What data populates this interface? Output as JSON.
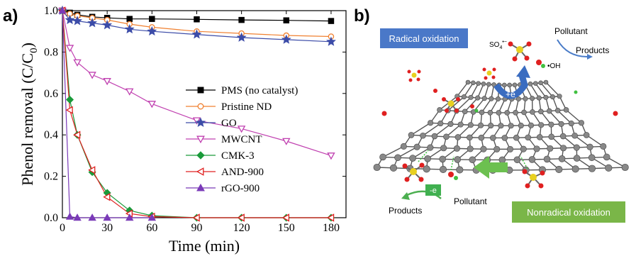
{
  "panel_a_label": "a)",
  "panel_b_label": "b)",
  "chart_data": {
    "type": "line",
    "xlabel": "Time (min)",
    "ylabel_main": "Phenol removal (C/C",
    "ylabel_sub": "0",
    "ylabel_close": ")",
    "xlim": [
      0,
      190
    ],
    "ylim": [
      0,
      1.0
    ],
    "x_ticks": [
      0,
      30,
      60,
      90,
      120,
      150,
      180
    ],
    "y_ticks": [
      "0.0",
      "0.2",
      "0.4",
      "0.6",
      "0.8",
      "1.0"
    ],
    "legend_position": "center-right",
    "series": [
      {
        "name": "PMS (no catalyst)",
        "color": "#000000",
        "marker": "square",
        "filled": true,
        "x": [
          0,
          5,
          10,
          20,
          30,
          45,
          60,
          90,
          120,
          150,
          180
        ],
        "y": [
          1.0,
          0.99,
          0.98,
          0.97,
          0.965,
          0.96,
          0.96,
          0.958,
          0.955,
          0.953,
          0.95
        ]
      },
      {
        "name": "Pristine ND",
        "color": "#f08030",
        "marker": "circle",
        "filled": false,
        "x": [
          0,
          5,
          10,
          20,
          30,
          45,
          60,
          90,
          120,
          150,
          180
        ],
        "y": [
          1.0,
          0.985,
          0.975,
          0.965,
          0.955,
          0.935,
          0.92,
          0.9,
          0.89,
          0.88,
          0.875
        ]
      },
      {
        "name": "GO",
        "color": "#3c4ca8",
        "marker": "star",
        "filled": true,
        "x": [
          0,
          5,
          10,
          20,
          30,
          45,
          60,
          90,
          120,
          150,
          180
        ],
        "y": [
          1.0,
          0.955,
          0.95,
          0.94,
          0.93,
          0.91,
          0.9,
          0.885,
          0.87,
          0.86,
          0.85
        ]
      },
      {
        "name": "MWCNT",
        "color": "#c040b0",
        "marker": "triangle-down",
        "filled": false,
        "x": [
          0,
          5,
          10,
          20,
          30,
          45,
          60,
          90,
          120,
          150,
          180
        ],
        "y": [
          1.0,
          0.82,
          0.75,
          0.69,
          0.66,
          0.61,
          0.55,
          0.47,
          0.43,
          0.37,
          0.3
        ]
      },
      {
        "name": "CMK-3",
        "color": "#1a9a3a",
        "marker": "diamond",
        "filled": true,
        "x": [
          0,
          5,
          10,
          20,
          30,
          45,
          60,
          90,
          120,
          150,
          180
        ],
        "y": [
          1.0,
          0.57,
          0.4,
          0.22,
          0.12,
          0.035,
          0.01,
          0.0,
          0.0,
          0.0,
          0.0
        ]
      },
      {
        "name": "AND-900",
        "color": "#e02020",
        "marker": "triangle-left",
        "filled": false,
        "x": [
          0,
          5,
          10,
          20,
          30,
          45,
          60,
          90,
          120,
          150,
          180
        ],
        "y": [
          1.0,
          0.52,
          0.4,
          0.23,
          0.1,
          0.02,
          0.005,
          0.0,
          0.0,
          0.0,
          0.0
        ]
      },
      {
        "name": "rGO-900",
        "color": "#7a3ab8",
        "marker": "triangle-up",
        "filled": true,
        "x": [
          0,
          5,
          10,
          20,
          30,
          45,
          60
        ],
        "y": [
          1.0,
          0.005,
          0.0,
          0.0,
          0.0,
          0.0,
          0.0
        ]
      }
    ]
  },
  "diagram": {
    "radical_label": "Radical oxidation",
    "nonradical_label": "Nonradical oxidation",
    "pollutant_top": "Pollutant",
    "products_top": "Products",
    "sulfate_radical": "SO",
    "sulfate_sub": "4",
    "sulfate_sup": "•−",
    "hydroxyl_radical": "•OH",
    "electron_gain": "+e",
    "electron_loss": "-e",
    "products_bottom": "Products",
    "pollutant_bottom": "Pollutant",
    "colors": {
      "radical_box": "#4a78c8",
      "nonradical_box": "#7ab648",
      "graphene": "#888888"
    }
  }
}
